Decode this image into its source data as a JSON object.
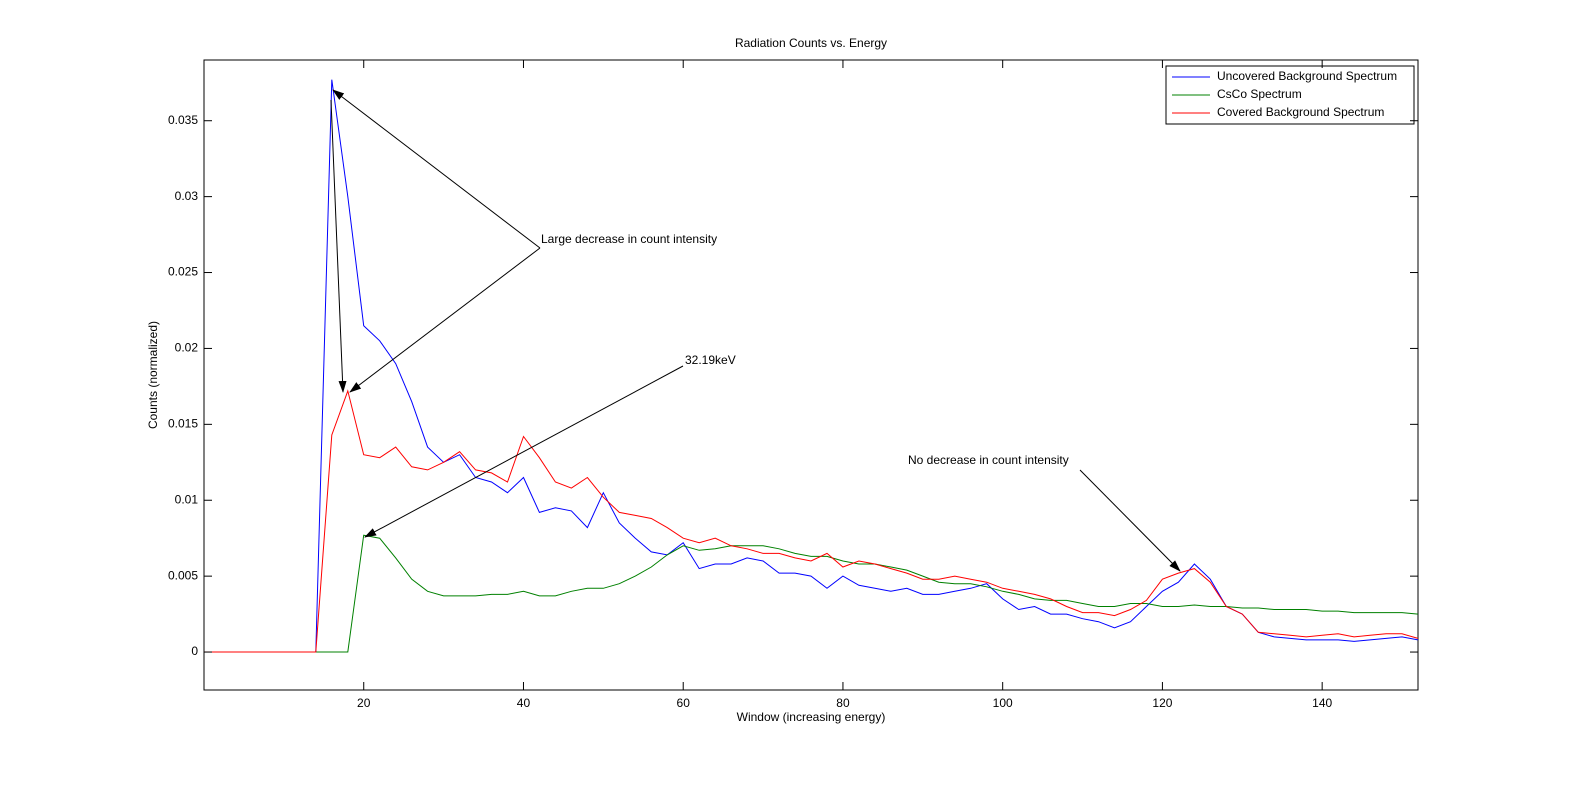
{
  "chart_data": {
    "type": "line",
    "title": "Radiation Counts vs. Energy",
    "x_label": "Window (increasing energy)",
    "y_label": "Counts (normalized)",
    "xlim": [
      0,
      152
    ],
    "ylim": [
      -0.0025,
      0.039
    ],
    "xticks": [
      20,
      40,
      60,
      80,
      100,
      120,
      140
    ],
    "yticks": [
      0,
      0.005,
      0.01,
      0.015,
      0.02,
      0.025,
      0.03,
      0.035
    ],
    "legend": "upper right",
    "annotations": [
      "Large decrease in count intensity",
      "32.19keV",
      "No decrease in count intensity"
    ],
    "x": [
      0,
      2,
      4,
      6,
      8,
      10,
      12,
      14,
      16,
      18,
      20,
      22,
      24,
      26,
      28,
      30,
      32,
      34,
      36,
      38,
      40,
      42,
      44,
      46,
      48,
      50,
      52,
      54,
      56,
      58,
      60,
      62,
      64,
      66,
      68,
      70,
      72,
      74,
      76,
      78,
      80,
      82,
      84,
      86,
      88,
      90,
      92,
      94,
      96,
      98,
      100,
      102,
      104,
      106,
      108,
      110,
      112,
      114,
      116,
      118,
      120,
      122,
      124,
      126,
      128,
      130,
      132,
      134,
      136,
      138,
      140,
      142,
      144,
      146,
      148,
      150,
      152
    ],
    "series": [
      {
        "name": "Uncovered Background Spectrum",
        "color": "#0000ff",
        "values": [
          0,
          0,
          0,
          0,
          0,
          0,
          0,
          0,
          0.0377,
          0.03,
          0.0215,
          0.0205,
          0.019,
          0.0165,
          0.0135,
          0.0125,
          0.013,
          0.0115,
          0.0112,
          0.0105,
          0.0115,
          0.0092,
          0.0095,
          0.0093,
          0.0082,
          0.0105,
          0.0085,
          0.0075,
          0.0066,
          0.0064,
          0.0072,
          0.0055,
          0.0058,
          0.0058,
          0.0062,
          0.006,
          0.0052,
          0.0052,
          0.005,
          0.0042,
          0.005,
          0.0044,
          0.0042,
          0.004,
          0.0042,
          0.0038,
          0.0038,
          0.004,
          0.0042,
          0.0045,
          0.0035,
          0.0028,
          0.003,
          0.0025,
          0.0025,
          0.0022,
          0.002,
          0.0016,
          0.002,
          0.003,
          0.004,
          0.0046,
          0.0058,
          0.0048,
          0.003,
          0.0025,
          0.0013,
          0.001,
          0.0009,
          0.0008,
          0.0008,
          0.0008,
          0.0007,
          0.0008,
          0.0009,
          0.001,
          0.0008
        ]
      },
      {
        "name": "CsCo Spectrum",
        "color": "#008000",
        "values": [
          0,
          0,
          0,
          0,
          0,
          0,
          0,
          0,
          0,
          0,
          0.0077,
          0.0075,
          0.0062,
          0.0048,
          0.004,
          0.0037,
          0.0037,
          0.0037,
          0.0038,
          0.0038,
          0.004,
          0.0037,
          0.0037,
          0.004,
          0.0042,
          0.0042,
          0.0045,
          0.005,
          0.0056,
          0.0064,
          0.007,
          0.0067,
          0.0068,
          0.007,
          0.007,
          0.007,
          0.0068,
          0.0065,
          0.0063,
          0.0063,
          0.006,
          0.0058,
          0.0058,
          0.0056,
          0.0054,
          0.005,
          0.0046,
          0.0045,
          0.0045,
          0.0043,
          0.004,
          0.0038,
          0.0035,
          0.0034,
          0.0034,
          0.0032,
          0.003,
          0.003,
          0.0032,
          0.0032,
          0.003,
          0.003,
          0.0031,
          0.003,
          0.003,
          0.0029,
          0.0029,
          0.0028,
          0.0028,
          0.0028,
          0.0027,
          0.0027,
          0.0026,
          0.0026,
          0.0026,
          0.0026,
          0.0025
        ]
      },
      {
        "name": "Covered Background Spectrum",
        "color": "#ff0000",
        "values": [
          0,
          0,
          0,
          0,
          0,
          0,
          0,
          0,
          0.0143,
          0.0172,
          0.013,
          0.0128,
          0.0135,
          0.0122,
          0.012,
          0.0125,
          0.0132,
          0.012,
          0.0118,
          0.0112,
          0.0142,
          0.0128,
          0.0112,
          0.0108,
          0.0115,
          0.0102,
          0.0092,
          0.009,
          0.0088,
          0.0082,
          0.0075,
          0.0072,
          0.0075,
          0.007,
          0.0068,
          0.0065,
          0.0065,
          0.0062,
          0.006,
          0.0065,
          0.0056,
          0.006,
          0.0058,
          0.0055,
          0.0052,
          0.0048,
          0.0048,
          0.005,
          0.0048,
          0.0046,
          0.0042,
          0.004,
          0.0038,
          0.0035,
          0.003,
          0.0026,
          0.0026,
          0.0024,
          0.0028,
          0.0034,
          0.0048,
          0.0052,
          0.0055,
          0.0046,
          0.003,
          0.0025,
          0.0013,
          0.0012,
          0.0011,
          0.001,
          0.0011,
          0.0012,
          0.001,
          0.0011,
          0.0012,
          0.0012,
          0.0009
        ]
      }
    ]
  }
}
